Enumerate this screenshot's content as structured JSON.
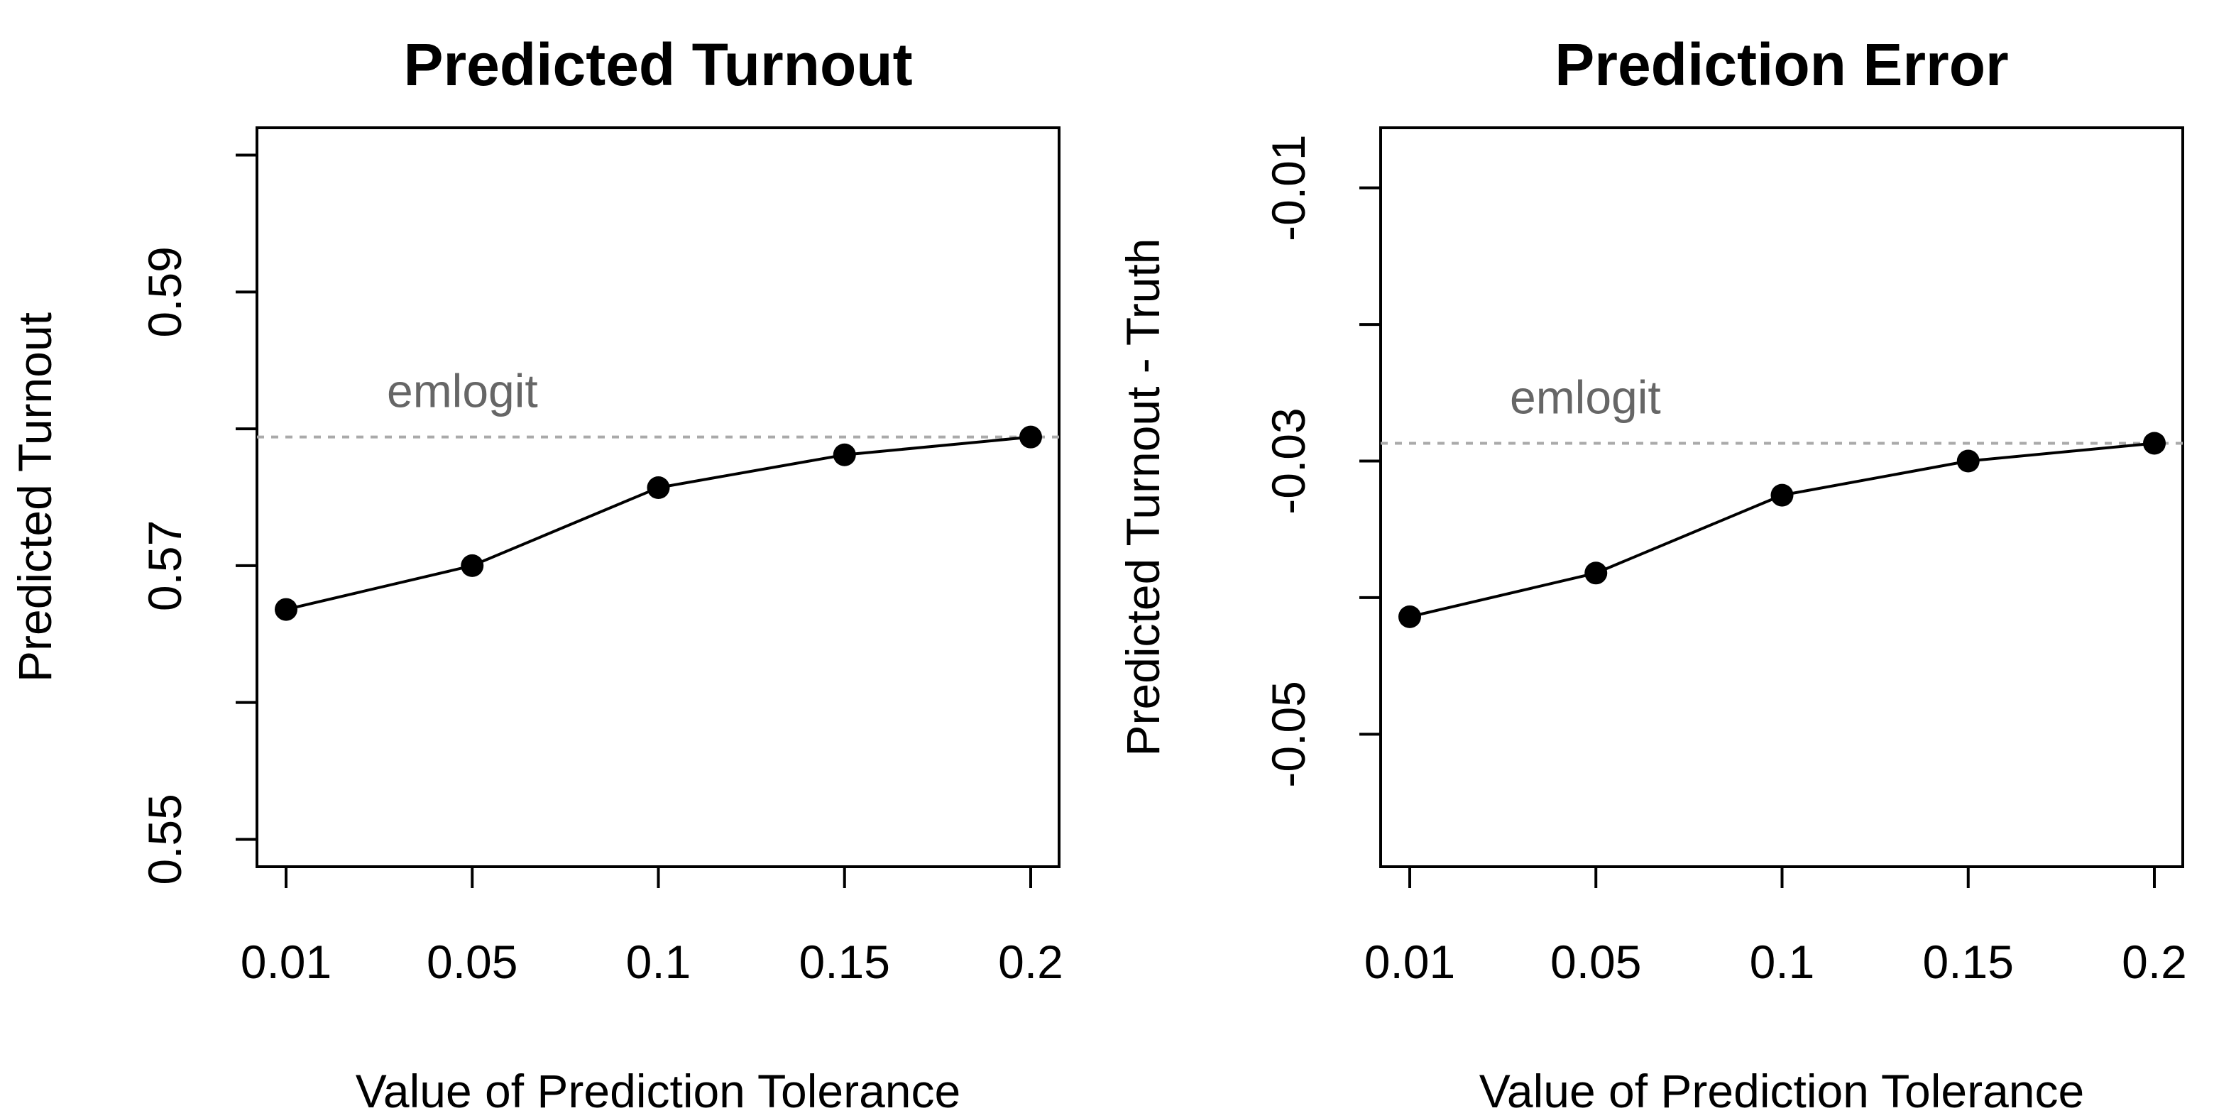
{
  "chart_data": [
    {
      "type": "line",
      "title": "Predicted Turnout",
      "xlabel": "Value of Prediction Tolerance",
      "ylabel": "Predicted Turnout",
      "x_tick_labels": [
        "0.01",
        "0.05",
        "0.1",
        "0.15",
        "0.2"
      ],
      "y_ticks": [
        0.55,
        0.56,
        0.57,
        0.58,
        0.59,
        0.6
      ],
      "y_tick_labels": [
        "0.55",
        "",
        "0.57",
        "",
        "0.59",
        ""
      ],
      "ylim": [
        0.548,
        0.602
      ],
      "values": [
        0.5668,
        0.57,
        0.5757,
        0.5781,
        0.5794
      ],
      "reference": {
        "value": 0.5794,
        "label": "emlogit"
      },
      "grid": false
    },
    {
      "type": "line",
      "title": "Prediction Error",
      "xlabel": "Value of Prediction Tolerance",
      "ylabel": "Predicted Turnout - Truth",
      "x_tick_labels": [
        "0.01",
        "0.05",
        "0.1",
        "0.15",
        "0.2"
      ],
      "y_ticks": [
        -0.05,
        -0.04,
        -0.03,
        -0.02,
        -0.01
      ],
      "y_tick_labels": [
        "-0.05",
        "",
        "-0.03",
        "",
        "-0.01"
      ],
      "ylim": [
        -0.0597,
        -0.0056
      ],
      "values": [
        -0.0414,
        -0.0382,
        -0.0325,
        -0.03,
        -0.0287
      ],
      "reference": {
        "value": -0.0287,
        "label": "emlogit"
      },
      "grid": false
    }
  ]
}
